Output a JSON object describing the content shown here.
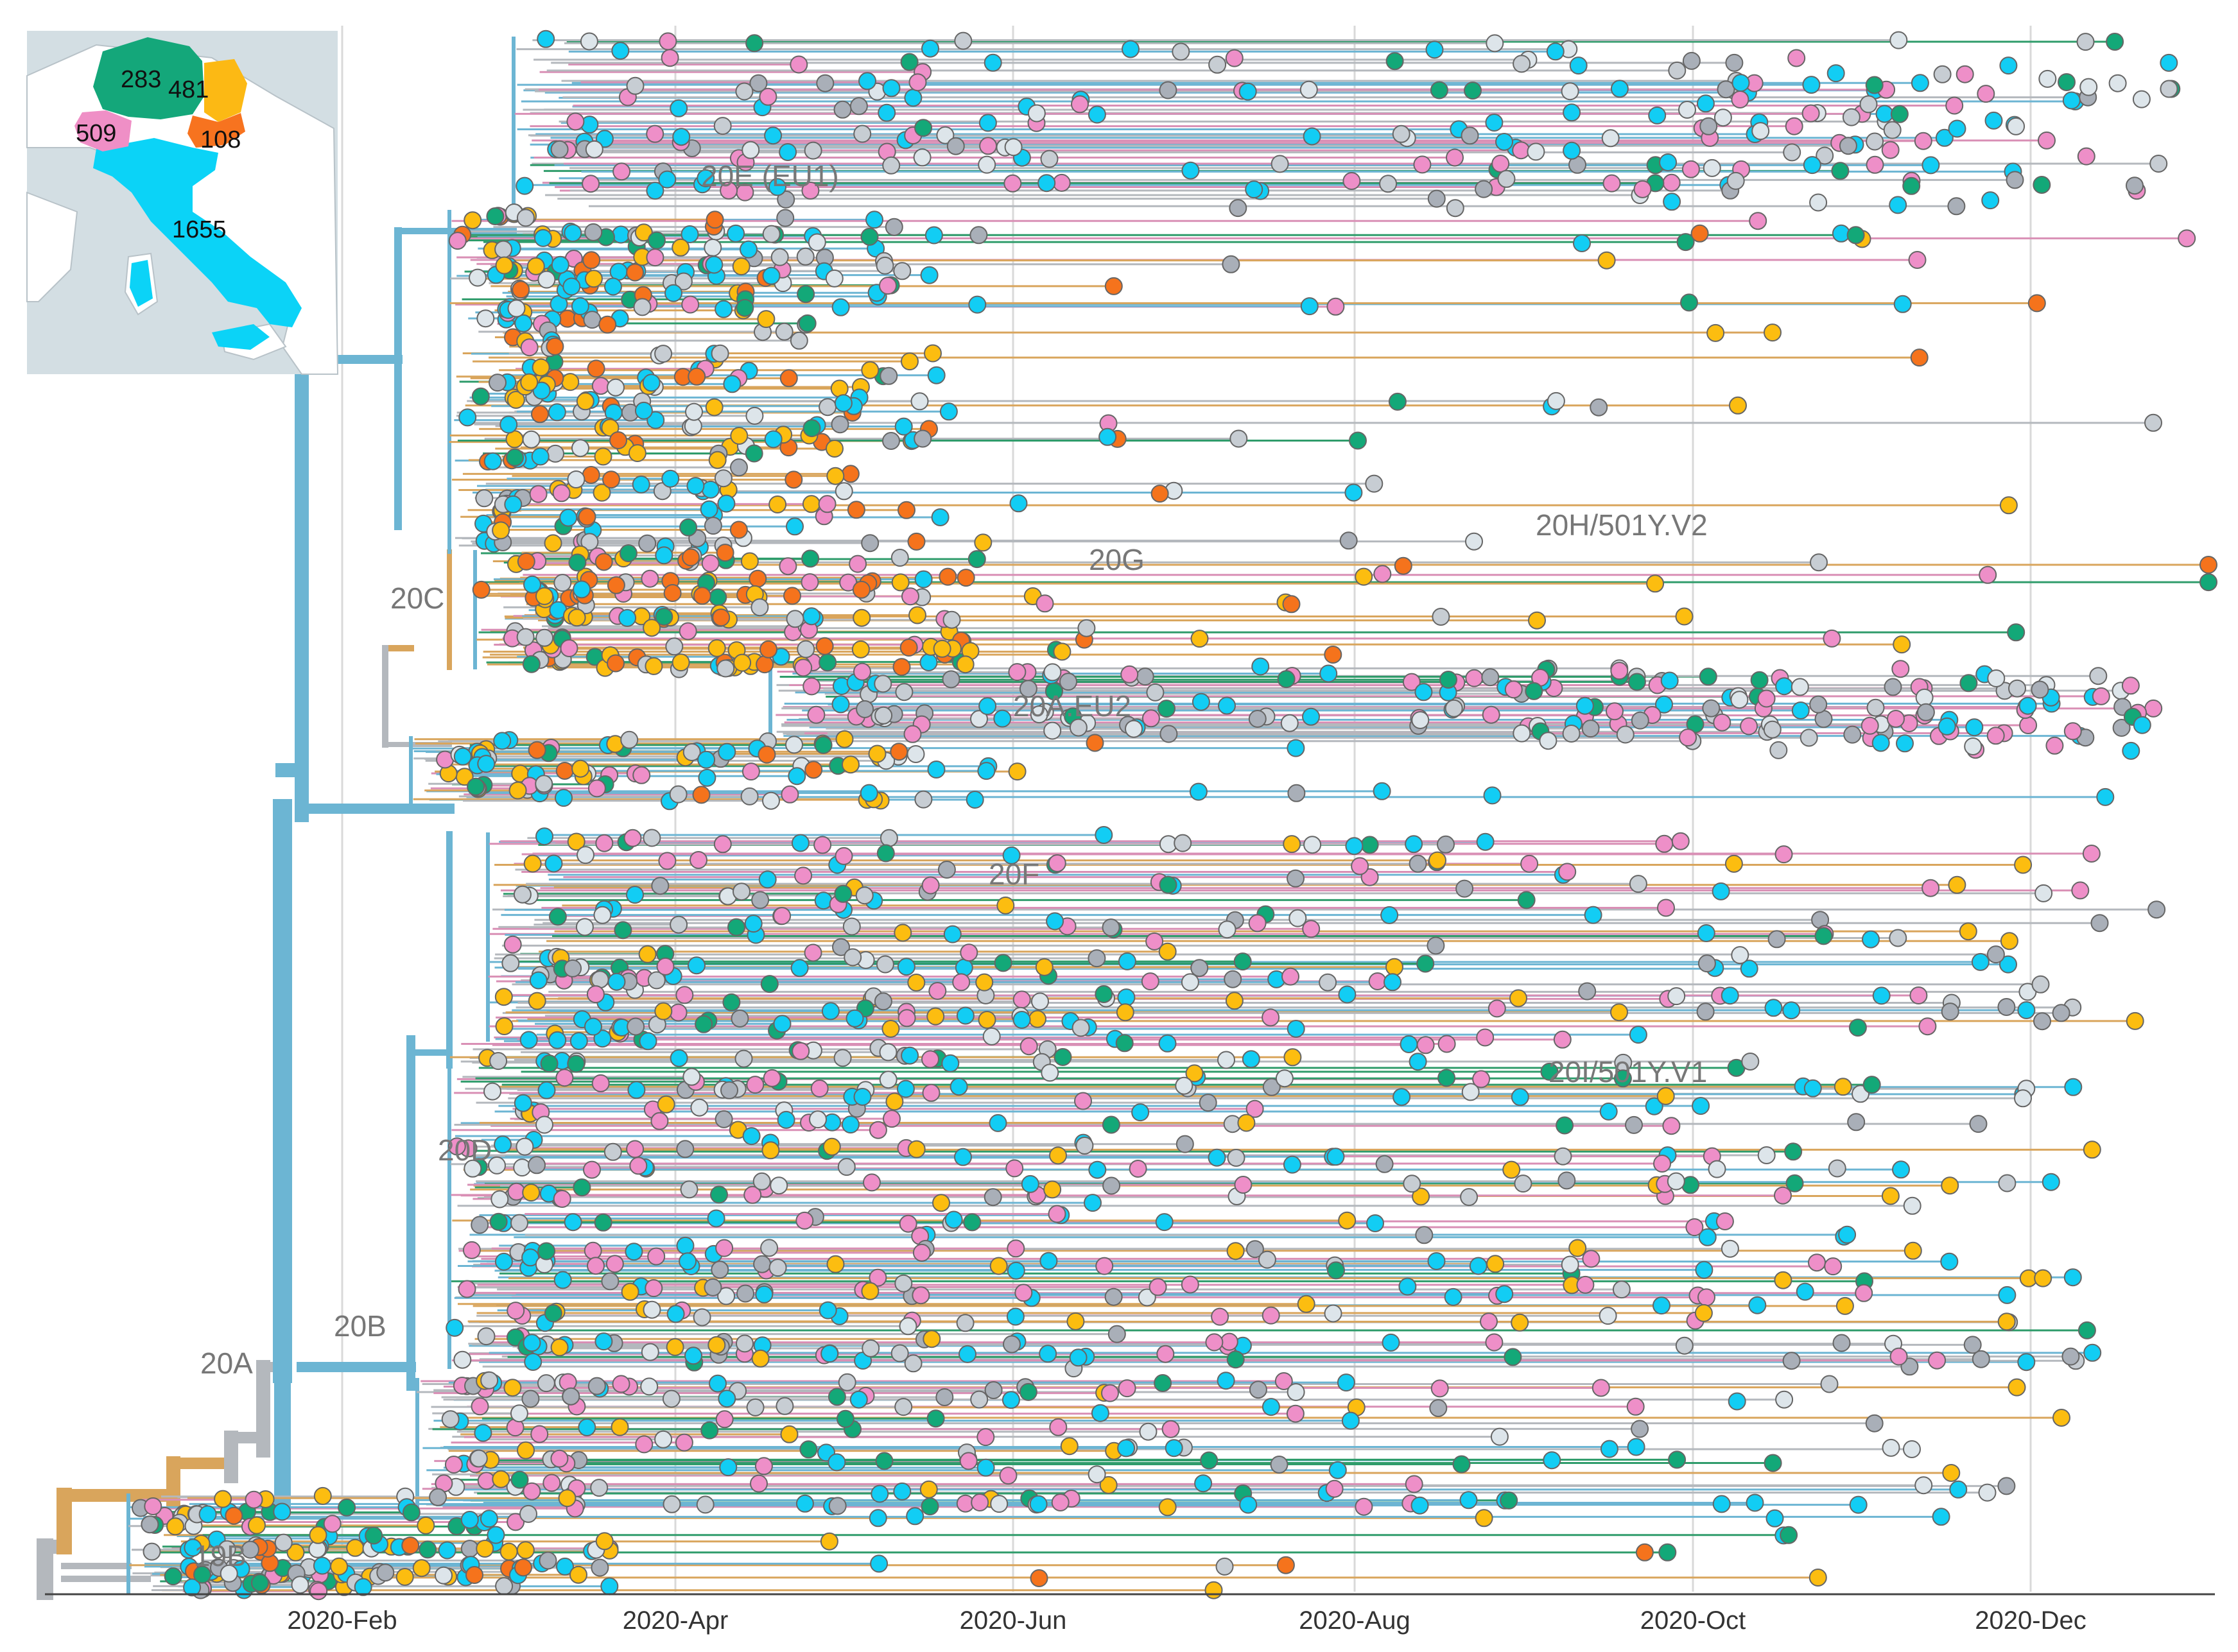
{
  "colors": {
    "background": "#ffffff",
    "gridline": "#d9d9d9",
    "axis": "#444444",
    "clade_label": "#777777",
    "backbone": "#6cb5d3",
    "branch_blue": "#6cb5d3",
    "branch_gray": "#b4b8bd",
    "branch_orange": "#d9a55c",
    "branch_pink": "#d98fb5",
    "branch_green": "#2f9c6b",
    "map_sea": "#d3dee3",
    "map_land": "#ffffff",
    "map_outline": "#b8c2c8"
  },
  "axis": {
    "ticks": [
      "2020-Feb",
      "2020-Apr",
      "2020-Jun",
      "2020-Aug",
      "2020-Oct",
      "2020-Dec"
    ]
  },
  "clades": [
    {
      "label": "20E (EU1)"
    },
    {
      "label": "20H/501Y.V2"
    },
    {
      "label": "20G"
    },
    {
      "label": "20C"
    },
    {
      "label": "20A.EU2"
    },
    {
      "label": "20F"
    },
    {
      "label": "20I/501Y.V1"
    },
    {
      "label": "20D"
    },
    {
      "label": "20B"
    },
    {
      "label": "20A"
    },
    {
      "label": "19B"
    }
  ],
  "inset_map": {
    "regions": [
      {
        "name": "green-region",
        "count": "283",
        "color": "#14a77a"
      },
      {
        "name": "yellow-region",
        "count": "481",
        "color": "#fcb914"
      },
      {
        "name": "pink-region",
        "count": "509",
        "color": "#ef8fc6"
      },
      {
        "name": "orange-region",
        "count": "108",
        "color": "#f7731f"
      },
      {
        "name": "cyan-region",
        "count": "1655",
        "color": "#0bd3f7"
      }
    ]
  },
  "tip_palette": [
    {
      "name": "cyan",
      "color": "#12cdf4"
    },
    {
      "name": "pink",
      "color": "#ee8fc8"
    },
    {
      "name": "yellow",
      "color": "#fcbd10"
    },
    {
      "name": "green",
      "color": "#13a878"
    },
    {
      "name": "orange",
      "color": "#f5731c"
    },
    {
      "name": "silver",
      "color": "#c7cdd3"
    },
    {
      "name": "light",
      "color": "#dde5ea"
    },
    {
      "name": "gray",
      "color": "#a9afb8"
    }
  ]
}
